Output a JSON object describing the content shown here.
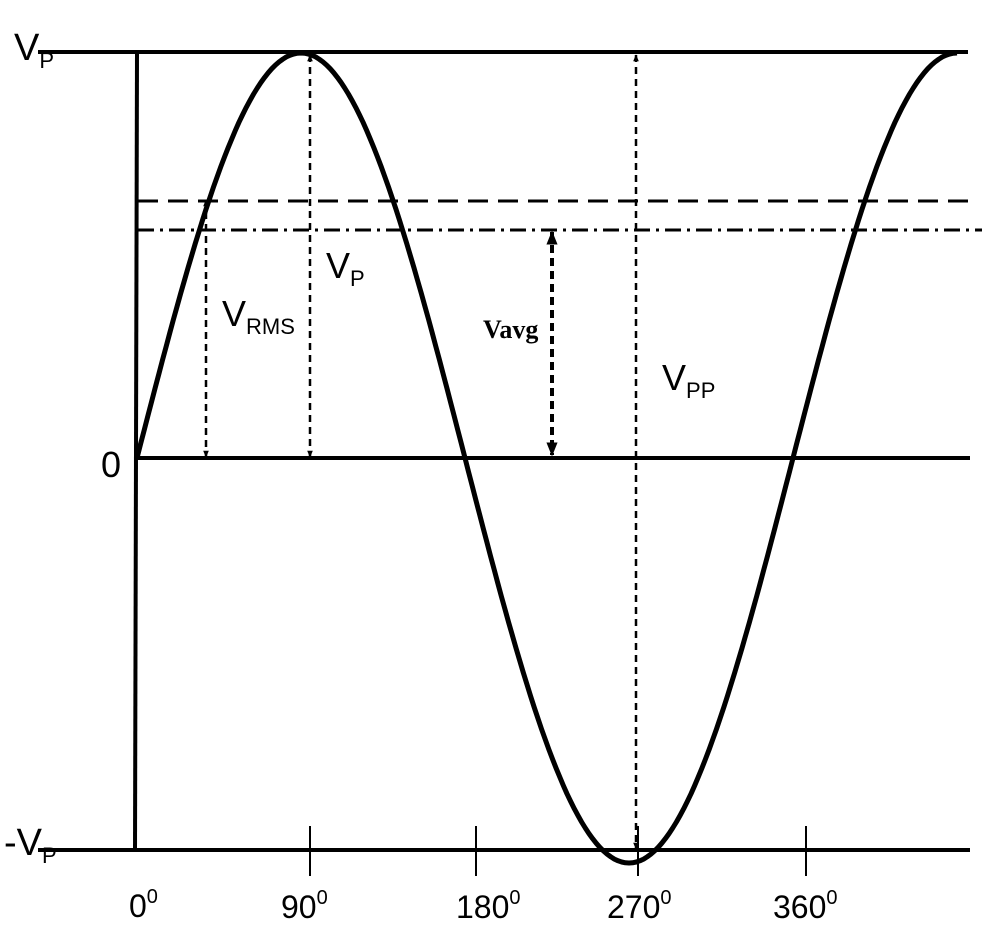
{
  "labels": {
    "vp_top": {
      "main": "V",
      "sub": "P"
    },
    "zero": "0",
    "vp_bottom": {
      "main": "-V",
      "sub": "P"
    },
    "vp_inner": {
      "main": "V",
      "sub": "P"
    },
    "vrms": {
      "main": "V",
      "sub": "RMS"
    },
    "vavg": "Vavg",
    "vpp": {
      "main": "V",
      "sub": "PP"
    }
  },
  "angle_ticks": [
    {
      "label": "0",
      "sup": "0"
    },
    {
      "label": "90",
      "sup": "0"
    },
    {
      "label": "180",
      "sup": "0"
    },
    {
      "label": "270",
      "sup": "0"
    },
    {
      "label": "360",
      "sup": "0"
    }
  ],
  "colors": {
    "ink": "#000000",
    "background": "#ffffff"
  }
}
